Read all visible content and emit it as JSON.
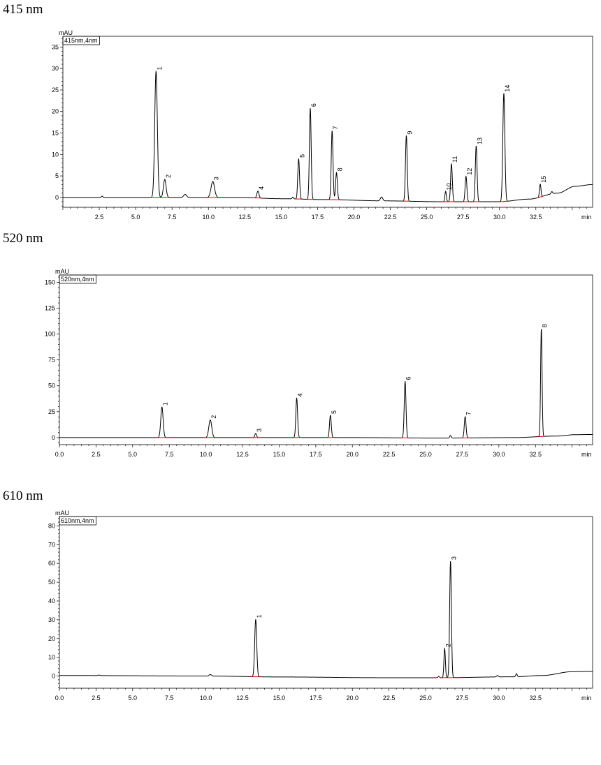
{
  "chart_data": [
    {
      "type": "line",
      "panel_title": "415 nm",
      "legend": "415nm,4nm",
      "ylabel": "mAU",
      "xlabel": "min",
      "xlim": [
        0,
        36.4
      ],
      "ylim": [
        -2.3,
        37.5
      ],
      "x_ticks": [
        2.5,
        5.0,
        7.5,
        10.0,
        12.5,
        15.0,
        17.5,
        20.0,
        22.5,
        25.0,
        27.5,
        30.0,
        32.5
      ],
      "x_tick_labels": [
        "2.5",
        "5.0",
        "7.5",
        "10.0",
        "12.5",
        "15.0",
        "17.5",
        "20.0",
        "22.5",
        "25.0",
        "27.5",
        "30.0",
        "32.5"
      ],
      "y_ticks": [
        0,
        5,
        10,
        15,
        20,
        25,
        30,
        35
      ],
      "baseline": [
        [
          0,
          0
        ],
        [
          12,
          0
        ],
        [
          15,
          -0.3
        ],
        [
          18,
          -0.5
        ],
        [
          22,
          -0.8
        ],
        [
          26,
          -1.0
        ],
        [
          30,
          -1.0
        ],
        [
          32,
          -0.4
        ],
        [
          34,
          1.0
        ],
        [
          35.2,
          2.6
        ],
        [
          36.4,
          3.0
        ]
      ],
      "peaks": [
        {
          "label": "1",
          "rt": 6.4,
          "height": 29.3,
          "width": 0.09
        },
        {
          "label": "2",
          "rt": 7.0,
          "height": 4.2,
          "width": 0.09
        },
        {
          "label": "3",
          "rt": 10.3,
          "height": 3.7,
          "width": 0.12
        },
        {
          "label": "4",
          "rt": 13.4,
          "height": 1.6,
          "width": 0.07
        },
        {
          "label": "5",
          "rt": 16.2,
          "height": 9.3,
          "width": 0.06
        },
        {
          "label": "6",
          "rt": 17.0,
          "height": 21.2,
          "width": 0.06
        },
        {
          "label": "7",
          "rt": 18.5,
          "height": 16.0,
          "width": 0.06
        },
        {
          "label": "8",
          "rt": 18.8,
          "height": 6.3,
          "width": 0.06
        },
        {
          "label": "9",
          "rt": 23.6,
          "height": 15.2,
          "width": 0.06
        },
        {
          "label": "10",
          "rt": 26.3,
          "height": 2.4,
          "width": 0.05
        },
        {
          "label": "11",
          "rt": 26.7,
          "height": 8.8,
          "width": 0.06
        },
        {
          "label": "12",
          "rt": 27.7,
          "height": 5.9,
          "width": 0.06
        },
        {
          "label": "13",
          "rt": 28.4,
          "height": 13.0,
          "width": 0.06
        },
        {
          "label": "14",
          "rt": 30.3,
          "height": 25.2,
          "width": 0.07
        },
        {
          "label": "15",
          "rt": 32.8,
          "height": 3.0,
          "width": 0.05
        }
      ],
      "minor_peaks": [
        {
          "rt": 2.7,
          "height": 0.3,
          "width": 0.05
        },
        {
          "rt": 8.4,
          "height": 0.7,
          "width": 0.1
        },
        {
          "rt": 15.8,
          "height": 0.4,
          "width": 0.05
        },
        {
          "rt": 21.9,
          "height": 0.9,
          "width": 0.08
        },
        {
          "rt": 33.6,
          "height": 0.5,
          "width": 0.05
        }
      ]
    },
    {
      "type": "line",
      "panel_title": "520 nm",
      "legend": "520nm,4nm",
      "ylabel": "mAU",
      "xlabel": "min",
      "xlim": [
        0,
        36.4
      ],
      "ylim": [
        -6.8,
        157
      ],
      "x_ticks": [
        0.0,
        2.5,
        5.0,
        7.5,
        10.0,
        12.5,
        15.0,
        17.5,
        20.0,
        22.5,
        25.0,
        27.5,
        30.0,
        32.5
      ],
      "x_tick_labels": [
        "0.0",
        "2.5",
        "5.0",
        "7.5",
        "10.0",
        "12.5",
        "15.0",
        "17.5",
        "20.0",
        "22.5",
        "25.0",
        "27.5",
        "30.0",
        "32.5"
      ],
      "y_ticks": [
        0,
        25,
        50,
        75,
        100,
        125,
        150
      ],
      "baseline": [
        [
          0,
          0
        ],
        [
          20,
          0
        ],
        [
          26,
          -0.5
        ],
        [
          31,
          0
        ],
        [
          34,
          1.5
        ],
        [
          35.2,
          2.8
        ],
        [
          36.4,
          3.0
        ]
      ],
      "peaks": [
        {
          "label": "1",
          "rt": 7.0,
          "height": 29.5,
          "width": 0.08
        },
        {
          "label": "2",
          "rt": 10.3,
          "height": 17.0,
          "width": 0.1
        },
        {
          "label": "3",
          "rt": 13.4,
          "height": 4.0,
          "width": 0.06
        },
        {
          "label": "4",
          "rt": 16.2,
          "height": 38.0,
          "width": 0.06
        },
        {
          "label": "5",
          "rt": 18.5,
          "height": 21.5,
          "width": 0.06
        },
        {
          "label": "6",
          "rt": 23.6,
          "height": 54.5,
          "width": 0.06
        },
        {
          "label": "7",
          "rt": 27.7,
          "height": 20.5,
          "width": 0.06
        },
        {
          "label": "8",
          "rt": 32.9,
          "height": 104.0,
          "width": 0.05
        }
      ],
      "minor_peaks": [
        {
          "rt": 26.7,
          "height": 2.5,
          "width": 0.05
        }
      ]
    },
    {
      "type": "line",
      "panel_title": "610 nm",
      "legend": "610nm,4nm",
      "ylabel": "mAU",
      "xlabel": "min",
      "xlim": [
        0,
        36.4
      ],
      "ylim": [
        -6.5,
        85
      ],
      "x_ticks": [
        0.0,
        2.5,
        5.0,
        7.5,
        10.0,
        12.5,
        15.0,
        17.5,
        20.0,
        22.5,
        25.0,
        27.5,
        30.0,
        32.5
      ],
      "x_tick_labels": [
        "0.0",
        "2.5",
        "5.0",
        "7.5",
        "10.0",
        "12.5",
        "15.0",
        "17.5",
        "20.0",
        "22.5",
        "25.0",
        "27.5",
        "30.0",
        "32.5"
      ],
      "y_ticks": [
        0,
        10,
        20,
        30,
        40,
        50,
        60,
        70,
        80
      ],
      "baseline": [
        [
          0,
          0.3
        ],
        [
          10,
          0
        ],
        [
          15,
          -0.5
        ],
        [
          22,
          -0.9
        ],
        [
          26,
          -0.9
        ],
        [
          31,
          -0.4
        ],
        [
          33,
          0.3
        ],
        [
          35,
          2.3
        ],
        [
          36.4,
          2.5
        ]
      ],
      "peaks": [
        {
          "label": "1",
          "rt": 13.4,
          "height": 30.5,
          "width": 0.07
        },
        {
          "label": "2",
          "rt": 26.3,
          "height": 15.5,
          "width": 0.05
        },
        {
          "label": "3",
          "rt": 26.7,
          "height": 62.0,
          "width": 0.06
        }
      ],
      "minor_peaks": [
        {
          "rt": 2.7,
          "height": 0.3,
          "width": 0.05
        },
        {
          "rt": 10.3,
          "height": 0.8,
          "width": 0.08
        },
        {
          "rt": 25.9,
          "height": 0.7,
          "width": 0.05
        },
        {
          "rt": 29.9,
          "height": 0.7,
          "width": 0.06
        },
        {
          "rt": 31.2,
          "height": 1.6,
          "width": 0.05
        }
      ]
    }
  ]
}
